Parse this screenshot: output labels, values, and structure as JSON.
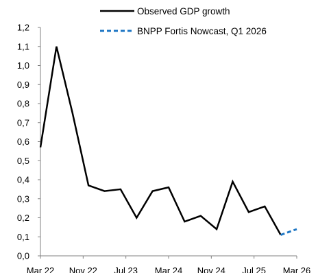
{
  "chart_data": {
    "type": "line",
    "title": "",
    "xlabel": "",
    "ylabel": "",
    "ylim": [
      0,
      1.2
    ],
    "y_ticks": [
      "0,0",
      "0,1",
      "0,2",
      "0,3",
      "0,4",
      "0,5",
      "0,6",
      "0,7",
      "0,8",
      "0,9",
      "1,0",
      "1,1",
      "1,2"
    ],
    "x_ticks": [
      "Mar 22",
      "Nov 22",
      "Jul 23",
      "Mar 24",
      "Nov 24",
      "Jul 25",
      "Mar 26"
    ],
    "x": [
      "Q1 2022",
      "Q2 2022",
      "Q3 2022",
      "Q4 2022",
      "Q1 2023",
      "Q2 2023",
      "Q3 2023",
      "Q4 2023",
      "Q1 2024",
      "Q2 2024",
      "Q3 2024",
      "Q4 2024",
      "Q1 2025",
      "Q2 2025",
      "Q3 2025",
      "Q4 2025",
      "Q1 2026"
    ],
    "grid": false,
    "legend_position": "top-right",
    "series": [
      {
        "name": "Observed GDP growth",
        "color": "#000000",
        "style": "solid",
        "values": [
          0.57,
          1.1,
          0.75,
          0.37,
          0.34,
          0.35,
          0.2,
          0.34,
          0.36,
          0.18,
          0.21,
          0.14,
          0.39,
          0.23,
          0.26,
          0.11,
          null
        ]
      },
      {
        "name": "BNPP Fortis Nowcast, Q1 2026",
        "color": "#1f77c4",
        "style": "dashed",
        "values": [
          null,
          null,
          null,
          null,
          null,
          null,
          null,
          null,
          null,
          null,
          null,
          null,
          null,
          null,
          null,
          0.11,
          0.14
        ]
      }
    ]
  }
}
